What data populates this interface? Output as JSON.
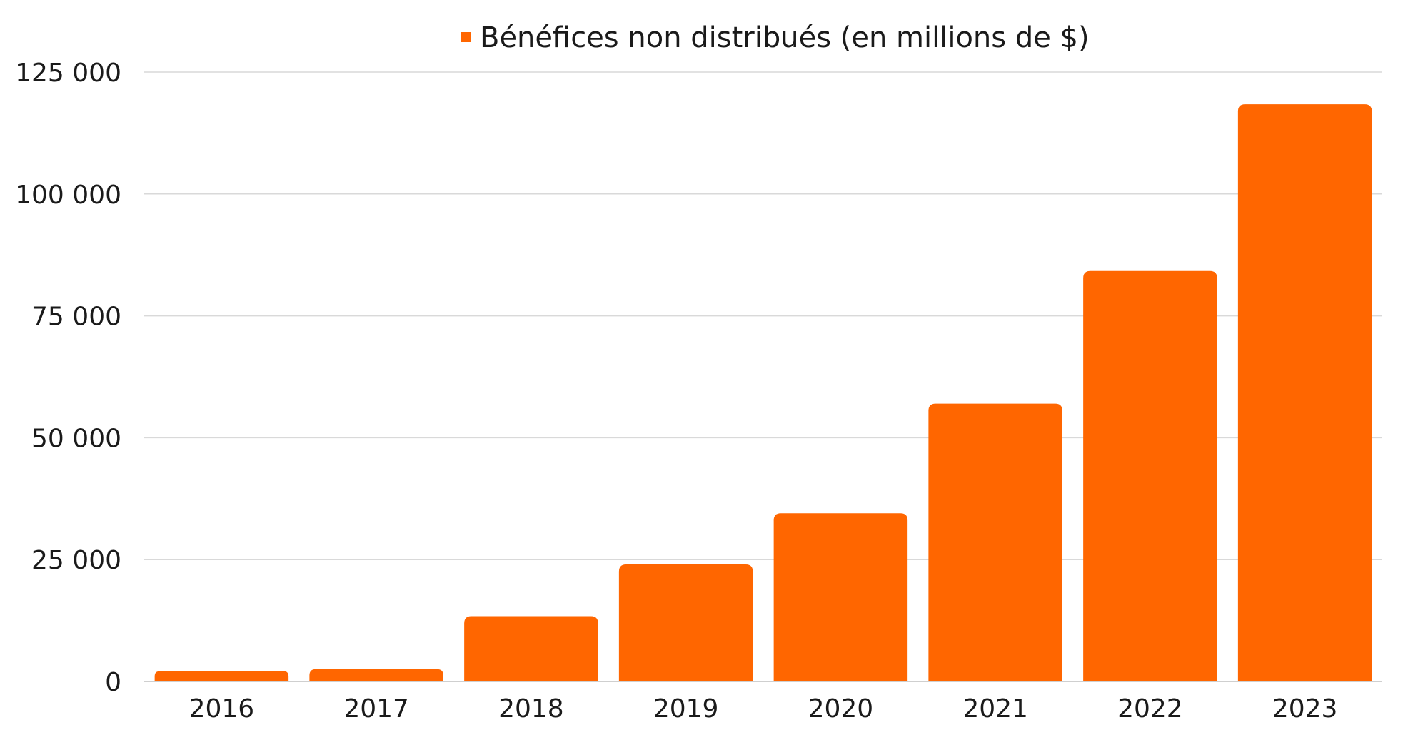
{
  "chart_data": {
    "type": "bar",
    "title": "",
    "xlabel": "",
    "ylabel": "",
    "legend": {
      "position": "top-center"
    },
    "categories": [
      "2016",
      "2017",
      "2018",
      "2019",
      "2020",
      "2021",
      "2022",
      "2023"
    ],
    "series": [
      {
        "name": "Bénéfices non distribués (en millions de $)",
        "color": "#ff6600",
        "values": [
          2100,
          2500,
          13400,
          24000,
          34500,
          57000,
          84200,
          118400
        ]
      }
    ],
    "ylim": [
      0,
      125000
    ],
    "yticks": [
      0,
      25000,
      50000,
      75000,
      100000,
      125000
    ],
    "ytick_labels": [
      "0",
      "25 000",
      "50 000",
      "75 000",
      "100 000",
      "125 000"
    ],
    "grid": true
  }
}
